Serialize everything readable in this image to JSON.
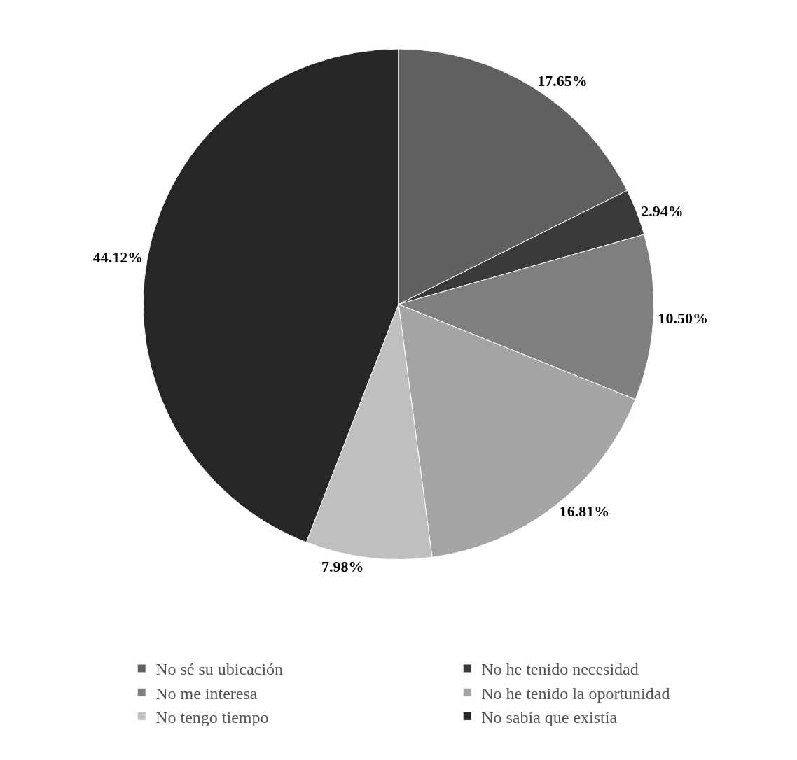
{
  "chart_data": {
    "type": "pie",
    "categories": [
      "No sé su ubicación",
      "No he tenido necesidad",
      "No me interesa",
      "No he tenido la oportunidad",
      "No tengo tiempo",
      "No sabía que existía"
    ],
    "values": [
      17.65,
      2.94,
      10.5,
      16.81,
      7.98,
      44.12
    ],
    "value_labels": [
      "17.65%",
      "2.94%",
      "10.50%",
      "16.81%",
      "7.98%",
      "44.12%"
    ],
    "colors": [
      "#606060",
      "#3a3a3a",
      "#7f7f7f",
      "#a5a5a5",
      "#bfbfbf",
      "#262626"
    ],
    "legend": "bottom"
  }
}
